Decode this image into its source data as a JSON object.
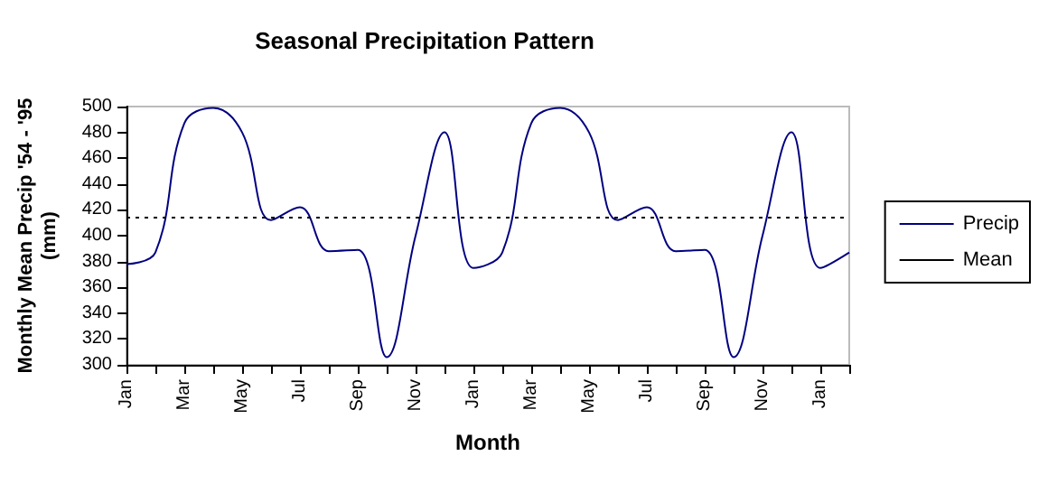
{
  "chart_data": {
    "type": "line",
    "title": "Seasonal Precipitation Pattern",
    "xlabel": "Month",
    "ylabel": "Monthly Mean Precip '54 - '95\n(mm)",
    "categories": [
      "Jan",
      null,
      "Mar",
      null,
      "May",
      null,
      "Jul",
      null,
      "Sep",
      null,
      "Nov",
      null,
      "Jan",
      null,
      "Mar",
      null,
      "May",
      null,
      "Jul",
      null,
      "Sep",
      null,
      "Nov",
      null,
      "Jan",
      null
    ],
    "series": [
      {
        "name": "Precip",
        "color": "#000080",
        "values": [
          378,
          387,
          487,
          499,
          480,
          412,
          422,
          388,
          389,
          306,
          400,
          480,
          375,
          387,
          487,
          499,
          480,
          412,
          422,
          388,
          389,
          306,
          400,
          480,
          375,
          387
        ]
      }
    ],
    "ref_lines": [
      {
        "axis": "y",
        "value": 414,
        "label": "Mean",
        "color": "#000000",
        "line_style": "dotted"
      }
    ],
    "ylim": [
      300,
      500
    ],
    "yticks": [
      300,
      320,
      340,
      360,
      380,
      400,
      420,
      440,
      460,
      480,
      500
    ],
    "grid": false,
    "legend": "right",
    "marker": "none",
    "line_style": "solid"
  }
}
